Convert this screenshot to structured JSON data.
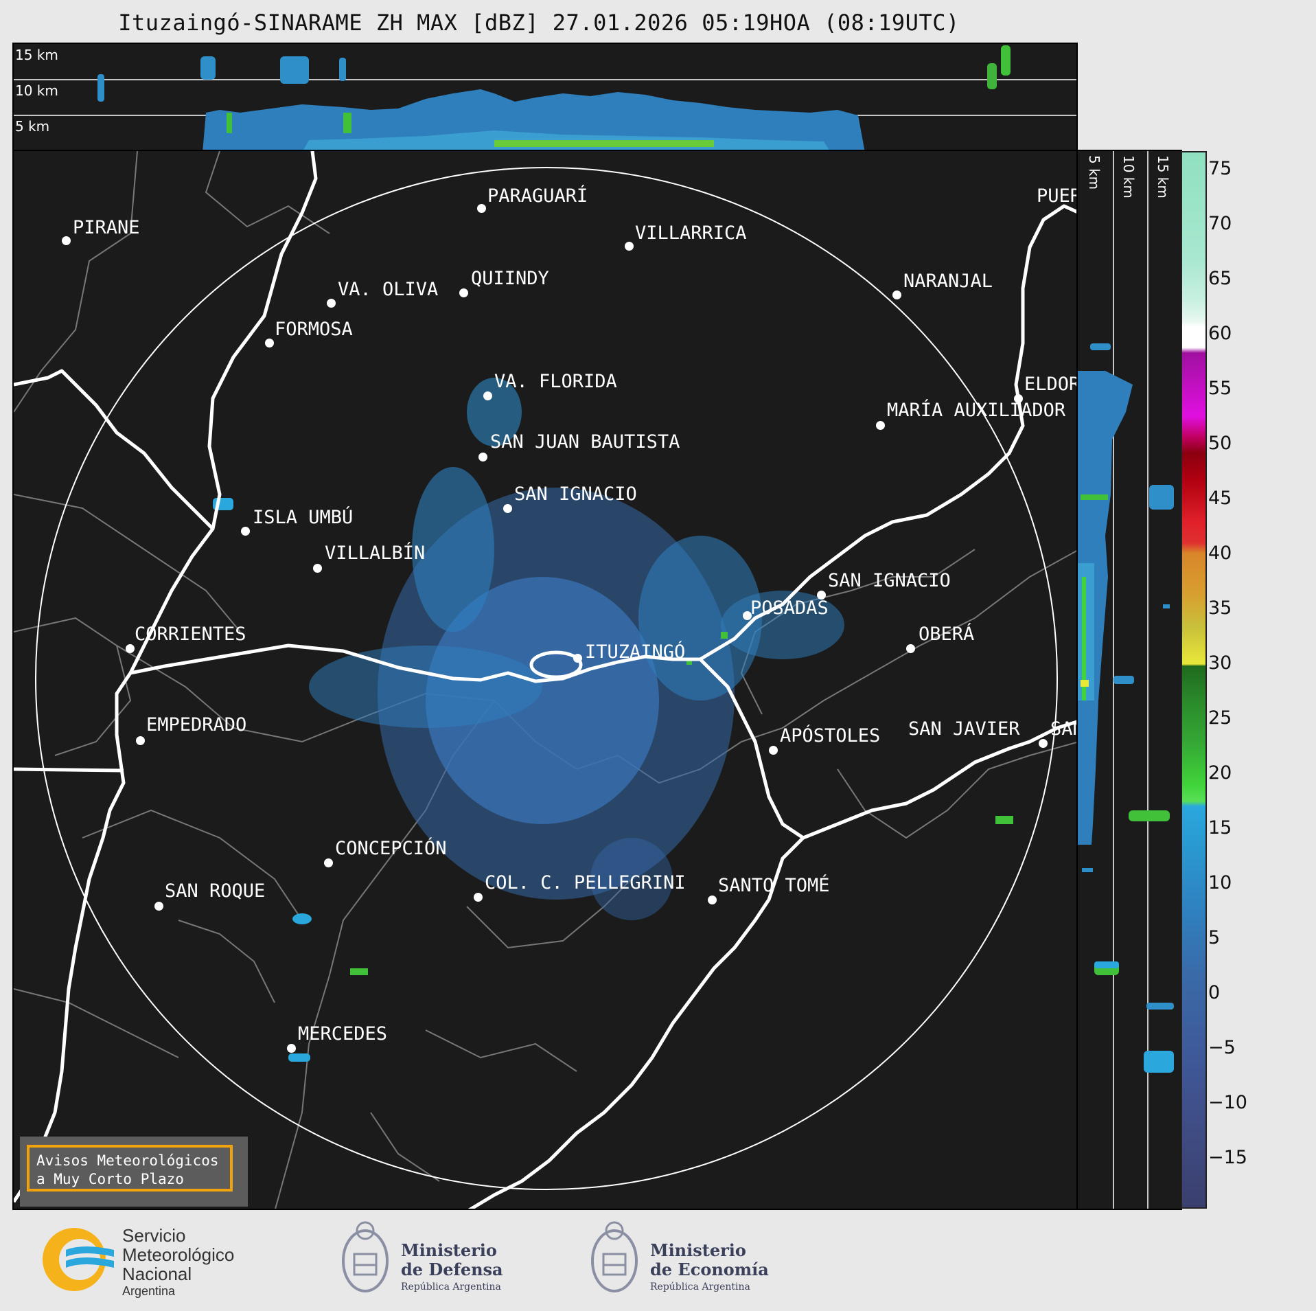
{
  "title": "Ituzaingó-SINARAME ZH MAX [dBZ] 27.01.2026 05:19HOA (08:19UTC)",
  "top_panel": {
    "labels": [
      "15 km",
      "10 km",
      "5 km"
    ]
  },
  "side_panel": {
    "labels": [
      "5 km",
      "10 km",
      "15 km"
    ]
  },
  "cities": [
    {
      "name": "PARAGUARÍ"
    },
    {
      "name": "VILLARRICA"
    },
    {
      "name": "PIRANE"
    },
    {
      "name": "QUIINDY"
    },
    {
      "name": "VA. OLIVA"
    },
    {
      "name": "NARANJAL"
    },
    {
      "name": "FORMOSA"
    },
    {
      "name": "VA. FLORIDA"
    },
    {
      "name": "ELDOR"
    },
    {
      "name": "MARÍA AUXILIADOR"
    },
    {
      "name": "SAN JUAN BAUTISTA"
    },
    {
      "name": "SAN IGNACIO"
    },
    {
      "name": "ISLA UMBÚ"
    },
    {
      "name": "VILLALBÍN"
    },
    {
      "name": "SAN IGNACIO"
    },
    {
      "name": "POSADAS"
    },
    {
      "name": "CORRIENTES"
    },
    {
      "name": "ITUZAINGÓ"
    },
    {
      "name": "OBERÁ"
    },
    {
      "name": "EMPEDRADO"
    },
    {
      "name": "APÓSTOLES"
    },
    {
      "name": "SAN JAVIER"
    },
    {
      "name": "SAN"
    },
    {
      "name": "CONCEPCIÓN"
    },
    {
      "name": "COL. C. PELLEGRINI"
    },
    {
      "name": "SANTO TOMÉ"
    },
    {
      "name": "SAN ROQUE"
    },
    {
      "name": "MERCEDES"
    },
    {
      "name": "PUER"
    }
  ],
  "colorbar": {
    "unit": "dBZ",
    "ticks": [
      "75",
      "70",
      "65",
      "60",
      "55",
      "50",
      "45",
      "40",
      "35",
      "30",
      "25",
      "20",
      "15",
      "10",
      "5",
      "0",
      "−5",
      "−10",
      "−15"
    ],
    "colors": {
      "low": "#3a3f6e",
      "mid_blue": "#3b73b0",
      "cyan": "#2aa8de",
      "green": "#41d43a",
      "yellow": "#e8e83a",
      "orange": "#d8862a",
      "red": "#e0202a",
      "darkred": "#8a0010",
      "magenta": "#e010e0",
      "white": "#ffffff",
      "mint": "#8fe0c0"
    }
  },
  "avisos": {
    "line1": "Avisos Meteorológicos",
    "line2": "a Muy Corto Plazo"
  },
  "logos": {
    "smn": {
      "line1": "Servicio",
      "line2": "Meteorológico",
      "line3": "Nacional",
      "line4": "Argentina"
    },
    "defensa": {
      "line1": "Ministerio",
      "line2": "de Defensa",
      "line3": "República Argentina"
    },
    "economia": {
      "line1": "Ministerio",
      "line2": "de Economía",
      "line3": "República Argentina"
    }
  }
}
